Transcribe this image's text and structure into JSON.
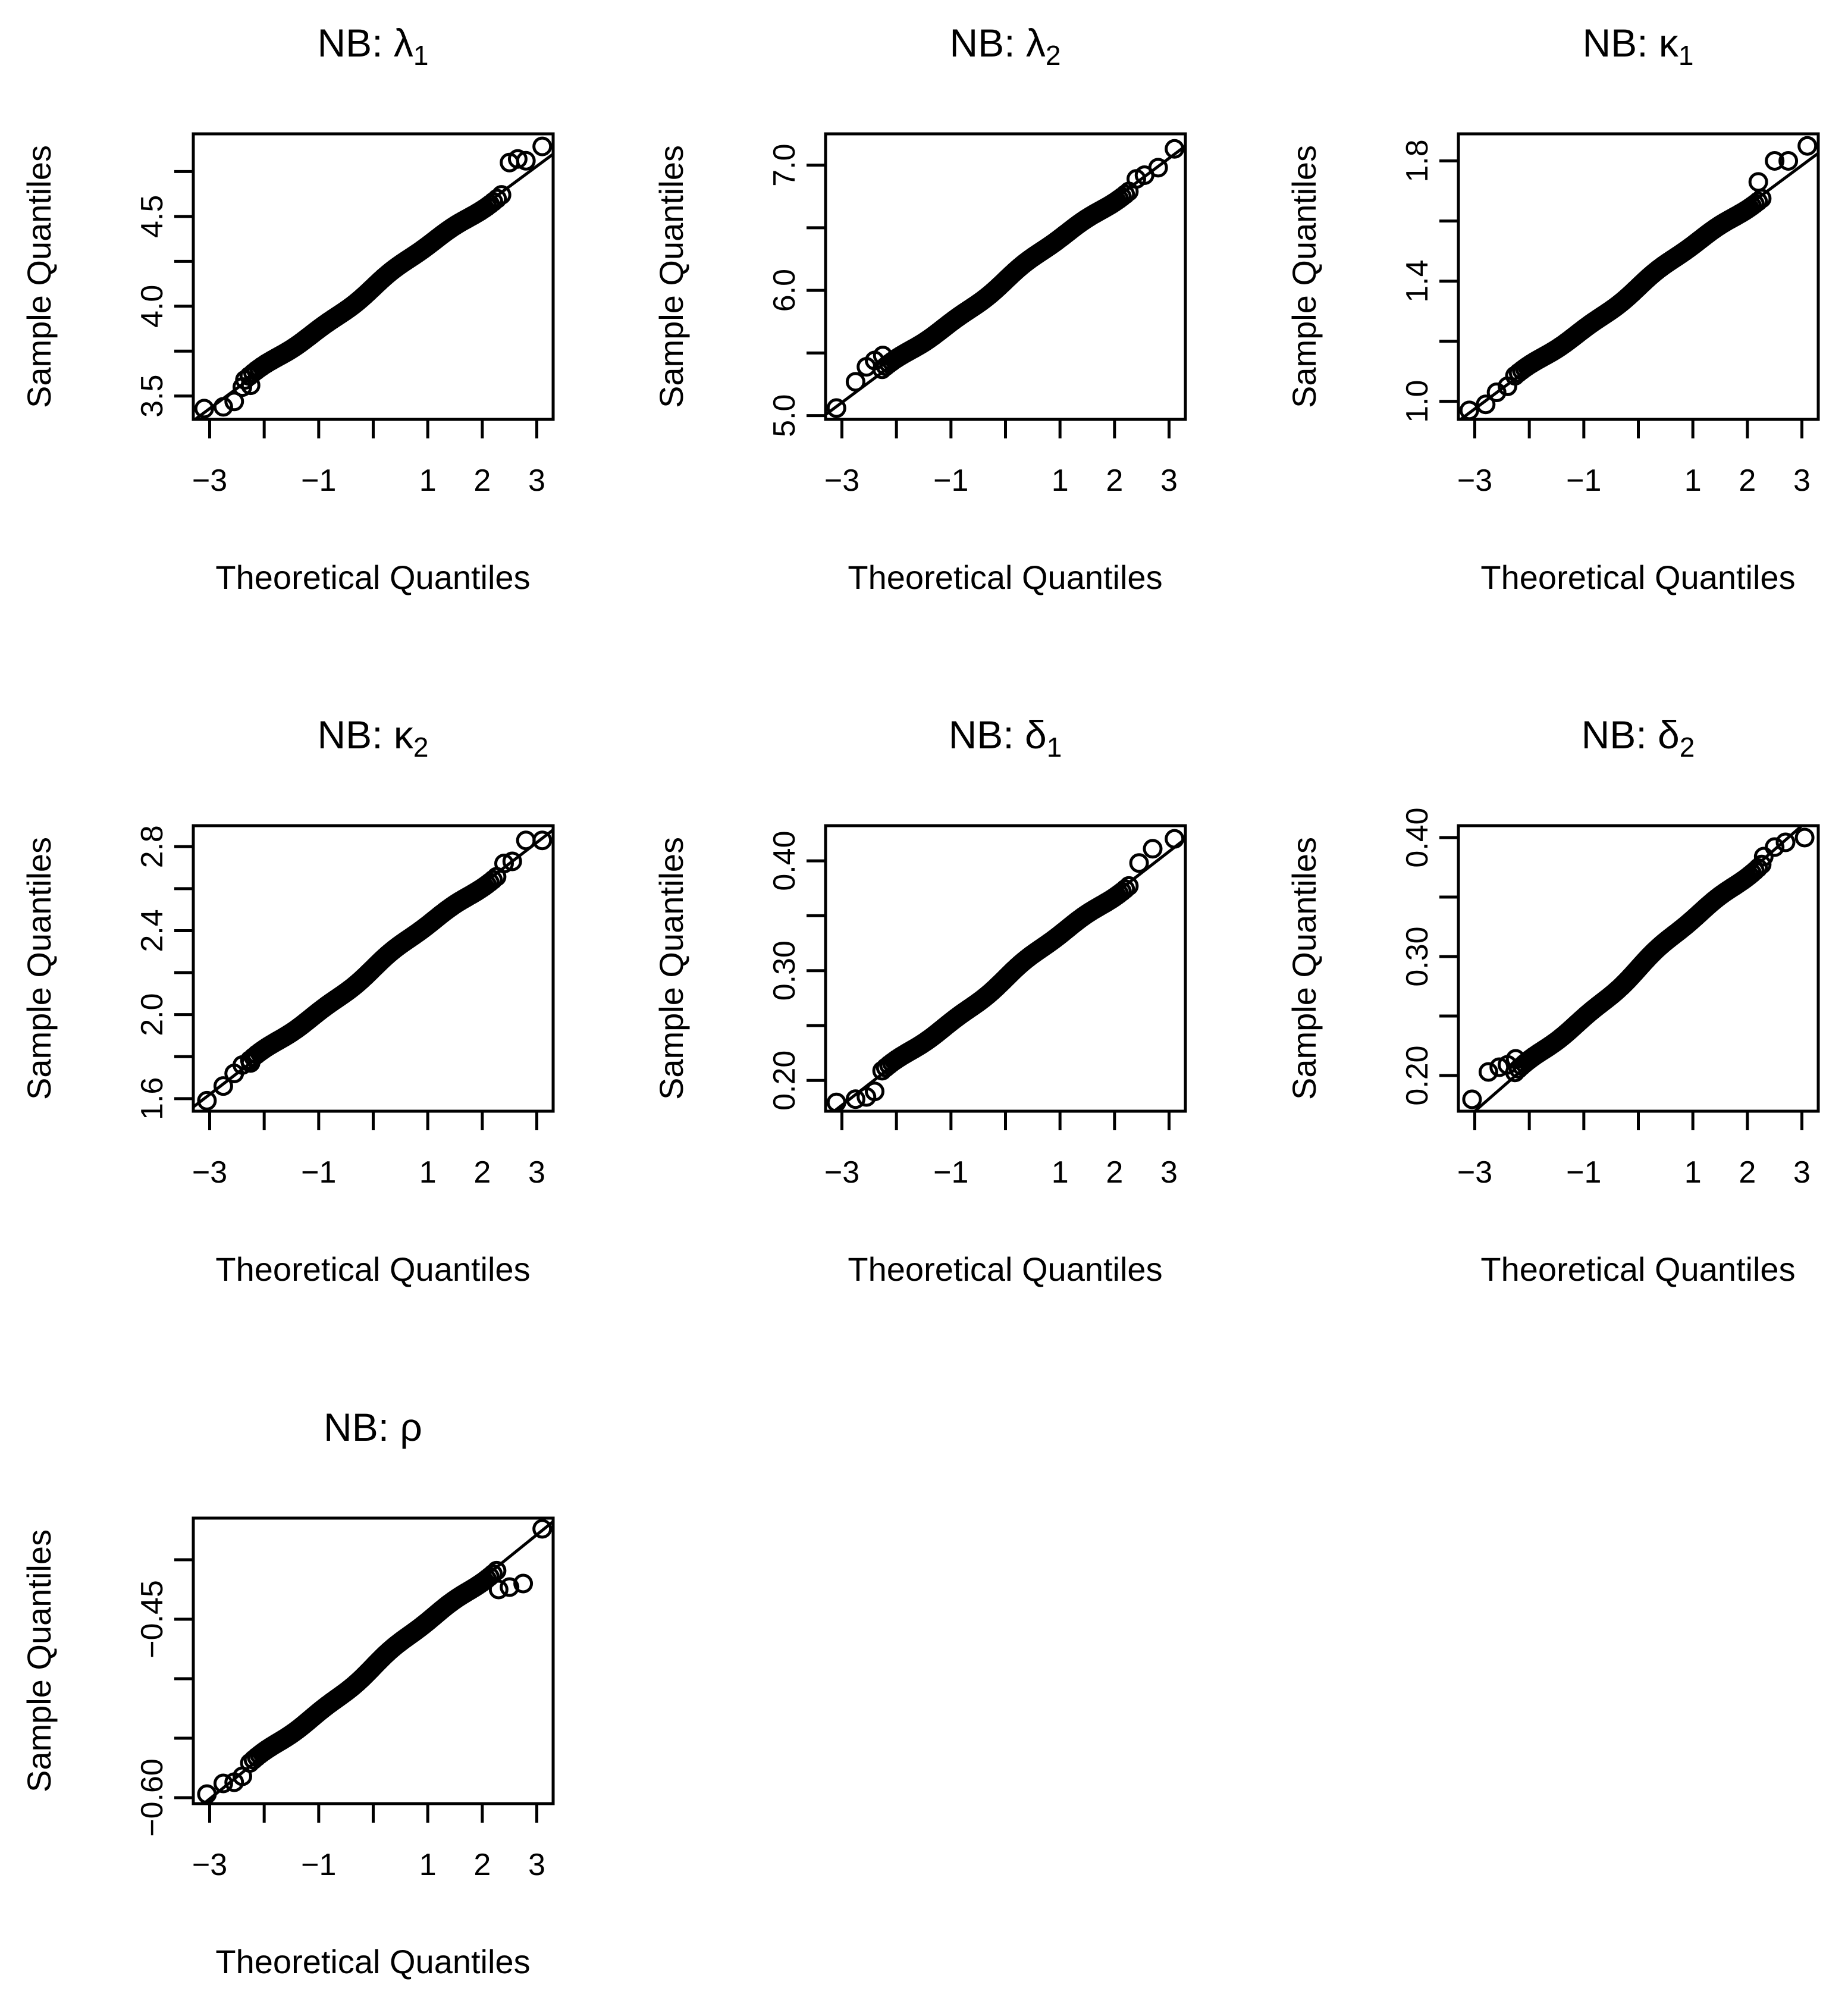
{
  "chart_data": [
    {
      "type": "scatter",
      "title_prefix": "NB: ",
      "symbol": "λ",
      "subscript": "1",
      "xlabel": "Theoretical Quantiles",
      "ylabel": "Sample Quantiles",
      "xlim": [
        -3.3,
        3.3
      ],
      "ylim": [
        3.37,
        4.96
      ],
      "xticks": [
        -3,
        -2,
        -1,
        0,
        1,
        2,
        3
      ],
      "xtick_labels": [
        "−3",
        "",
        "−1",
        "",
        "1",
        "2",
        "3"
      ],
      "yticks": [
        3.5,
        3.75,
        4.0,
        4.25,
        4.5,
        4.75
      ],
      "ytick_labels": [
        "3.5",
        "",
        "4.0",
        "",
        "4.5",
        ""
      ],
      "ref_line": {
        "intercept": 4.105,
        "slope": 0.225
      },
      "tails": [
        [
          -3.1,
          3.43
        ],
        [
          -2.75,
          3.44
        ],
        [
          -2.55,
          3.47
        ],
        [
          -2.4,
          3.55
        ],
        [
          -2.25,
          3.56
        ],
        [
          2.5,
          4.8
        ],
        [
          2.65,
          4.82
        ],
        [
          2.8,
          4.81
        ],
        [
          3.1,
          4.89
        ]
      ],
      "body": {
        "n": 440,
        "quantile_range": [
          -2.4,
          2.4
        ],
        "mean": 4.105,
        "sd": 0.225
      }
    },
    {
      "type": "scatter",
      "title_prefix": "NB: ",
      "symbol": "λ",
      "subscript": "2",
      "xlabel": "Theoretical Quantiles",
      "ylabel": "Sample Quantiles",
      "xlim": [
        -3.3,
        3.3
      ],
      "ylim": [
        4.97,
        7.25
      ],
      "xticks": [
        -3,
        -2,
        -1,
        0,
        1,
        2,
        3
      ],
      "xtick_labels": [
        "−3",
        "",
        "−1",
        "",
        "1",
        "2",
        "3"
      ],
      "yticks": [
        5.0,
        5.5,
        6.0,
        6.5,
        7.0
      ],
      "ytick_labels": [
        "5.0",
        "",
        "6.0",
        "",
        "7.0"
      ],
      "ref_line": {
        "intercept": 6.08,
        "slope": 0.325
      },
      "tails": [
        [
          -3.1,
          5.06
        ],
        [
          -2.75,
          5.27
        ],
        [
          -2.55,
          5.39
        ],
        [
          -2.4,
          5.44
        ],
        [
          -2.25,
          5.48
        ],
        [
          2.4,
          6.89
        ],
        [
          2.55,
          6.92
        ],
        [
          2.8,
          6.98
        ],
        [
          3.1,
          7.13
        ]
      ],
      "body": {
        "n": 440,
        "quantile_range": [
          -2.3,
          2.3
        ],
        "mean": 6.08,
        "sd": 0.325
      }
    },
    {
      "type": "scatter",
      "title_prefix": "NB: ",
      "symbol": "κ",
      "subscript": "1",
      "xlabel": "Theoretical Quantiles",
      "ylabel": "Sample Quantiles",
      "xlim": [
        -3.3,
        3.3
      ],
      "ylim": [
        0.94,
        1.89
      ],
      "xticks": [
        -3,
        -2,
        -1,
        0,
        1,
        2,
        3
      ],
      "xtick_labels": [
        "−3",
        "",
        "−1",
        "",
        "1",
        "2",
        "3"
      ],
      "yticks": [
        1.0,
        1.2,
        1.4,
        1.6,
        1.8
      ],
      "ytick_labels": [
        "1.0",
        "",
        "1.4",
        "",
        "1.8"
      ],
      "ref_line": {
        "intercept": 1.38,
        "slope": 0.135
      },
      "tails": [
        [
          -3.1,
          0.97
        ],
        [
          -2.8,
          0.99
        ],
        [
          -2.6,
          1.03
        ],
        [
          -2.4,
          1.05
        ],
        [
          2.2,
          1.73
        ],
        [
          2.5,
          1.8
        ],
        [
          2.75,
          1.8
        ],
        [
          3.1,
          1.85
        ]
      ],
      "body": {
        "n": 440,
        "quantile_range": [
          -2.3,
          2.3
        ],
        "mean": 1.38,
        "sd": 0.135
      }
    },
    {
      "type": "scatter",
      "title_prefix": "NB: ",
      "symbol": "κ",
      "subscript": "2",
      "xlabel": "Theoretical Quantiles",
      "ylabel": "Sample Quantiles",
      "xlim": [
        -3.3,
        3.3
      ],
      "ylim": [
        1.54,
        2.9
      ],
      "xticks": [
        -3,
        -2,
        -1,
        0,
        1,
        2,
        3
      ],
      "xtick_labels": [
        "−3",
        "",
        "−1",
        "",
        "1",
        "2",
        "3"
      ],
      "yticks": [
        1.6,
        1.8,
        2.0,
        2.2,
        2.4,
        2.6,
        2.8
      ],
      "ytick_labels": [
        "1.6",
        "",
        "2.0",
        "",
        "2.4",
        "",
        "2.8"
      ],
      "ref_line": {
        "intercept": 2.22,
        "slope": 0.2
      },
      "tails": [
        [
          -3.05,
          1.59
        ],
        [
          -2.75,
          1.66
        ],
        [
          -2.55,
          1.72
        ],
        [
          -2.4,
          1.76
        ],
        [
          -2.25,
          1.77
        ],
        [
          2.4,
          2.72
        ],
        [
          2.55,
          2.73
        ],
        [
          2.8,
          2.83
        ],
        [
          3.1,
          2.83
        ]
      ],
      "body": {
        "n": 440,
        "quantile_range": [
          -2.3,
          2.3
        ],
        "mean": 2.22,
        "sd": 0.2
      }
    },
    {
      "type": "scatter",
      "title_prefix": "NB: ",
      "symbol": "δ",
      "subscript": "1",
      "xlabel": "Theoretical Quantiles",
      "ylabel": "Sample Quantiles",
      "xlim": [
        -3.3,
        3.3
      ],
      "ylim": [
        0.172,
        0.432
      ],
      "xticks": [
        -3,
        -2,
        -1,
        0,
        1,
        2,
        3
      ],
      "xtick_labels": [
        "−3",
        "",
        "−1",
        "",
        "1",
        "2",
        "3"
      ],
      "yticks": [
        0.2,
        0.25,
        0.3,
        0.35,
        0.4
      ],
      "ytick_labels": [
        "0.20",
        "",
        "0.30",
        "",
        "0.40"
      ],
      "ref_line": {
        "intercept": 0.293,
        "slope": 0.0385
      },
      "tails": [
        [
          -3.1,
          0.18
        ],
        [
          -2.75,
          0.183
        ],
        [
          -2.55,
          0.185
        ],
        [
          -2.4,
          0.19
        ],
        [
          2.45,
          0.398
        ],
        [
          2.7,
          0.411
        ],
        [
          3.1,
          0.42
        ]
      ],
      "body": {
        "n": 440,
        "quantile_range": [
          -2.3,
          2.3
        ],
        "mean": 0.293,
        "sd": 0.0385
      }
    },
    {
      "type": "scatter",
      "title_prefix": "NB: ",
      "symbol": "δ",
      "subscript": "2",
      "xlabel": "Theoretical Quantiles",
      "ylabel": "Sample Quantiles",
      "xlim": [
        -3.3,
        3.3
      ],
      "ylim": [
        0.17,
        0.41
      ],
      "xticks": [
        -3,
        -2,
        -1,
        0,
        1,
        2,
        3
      ],
      "xtick_labels": [
        "−3",
        "",
        "−1",
        "",
        "1",
        "2",
        "3"
      ],
      "yticks": [
        0.2,
        0.25,
        0.3,
        0.35,
        0.4
      ],
      "ytick_labels": [
        "0.20",
        "",
        "0.30",
        "",
        "0.40"
      ],
      "ref_line": {
        "intercept": 0.29,
        "slope": 0.04
      },
      "tails": [
        [
          -3.05,
          0.18
        ],
        [
          -2.75,
          0.203
        ],
        [
          -2.55,
          0.207
        ],
        [
          -2.4,
          0.209
        ],
        [
          -2.25,
          0.214
        ],
        [
          2.3,
          0.384
        ],
        [
          2.5,
          0.392
        ],
        [
          2.7,
          0.396
        ],
        [
          3.05,
          0.4
        ]
      ],
      "body": {
        "n": 440,
        "quantile_range": [
          -2.3,
          2.3
        ],
        "mean": 0.29,
        "sd": 0.04
      }
    },
    {
      "type": "scatter",
      "title_prefix": "NB: ",
      "symbol": "ρ",
      "subscript": "",
      "xlabel": "Theoretical Quantiles",
      "ylabel": "Sample Quantiles",
      "xlim": [
        -3.3,
        3.3
      ],
      "ylim": [
        -0.605,
        -0.365
      ],
      "xticks": [
        -3,
        -2,
        -1,
        0,
        1,
        2,
        3
      ],
      "xtick_labels": [
        "−3",
        "",
        "−1",
        "",
        "1",
        "2",
        "3"
      ],
      "yticks": [
        -0.6,
        -0.55,
        -0.5,
        -0.45,
        -0.4
      ],
      "ytick_labels": [
        "−0.60",
        "",
        "",
        "−0.45",
        ""
      ],
      "ref_line": {
        "intercept": -0.49,
        "slope": 0.037
      },
      "tails": [
        [
          -3.05,
          -0.597
        ],
        [
          -2.75,
          -0.588
        ],
        [
          -2.55,
          -0.587
        ],
        [
          -2.4,
          -0.582
        ],
        [
          2.3,
          -0.425
        ],
        [
          2.5,
          -0.423
        ],
        [
          2.75,
          -0.42
        ],
        [
          3.1,
          -0.374
        ]
      ],
      "body": {
        "n": 440,
        "quantile_range": [
          -2.3,
          2.3
        ],
        "mean": -0.49,
        "sd": 0.037
      }
    }
  ]
}
